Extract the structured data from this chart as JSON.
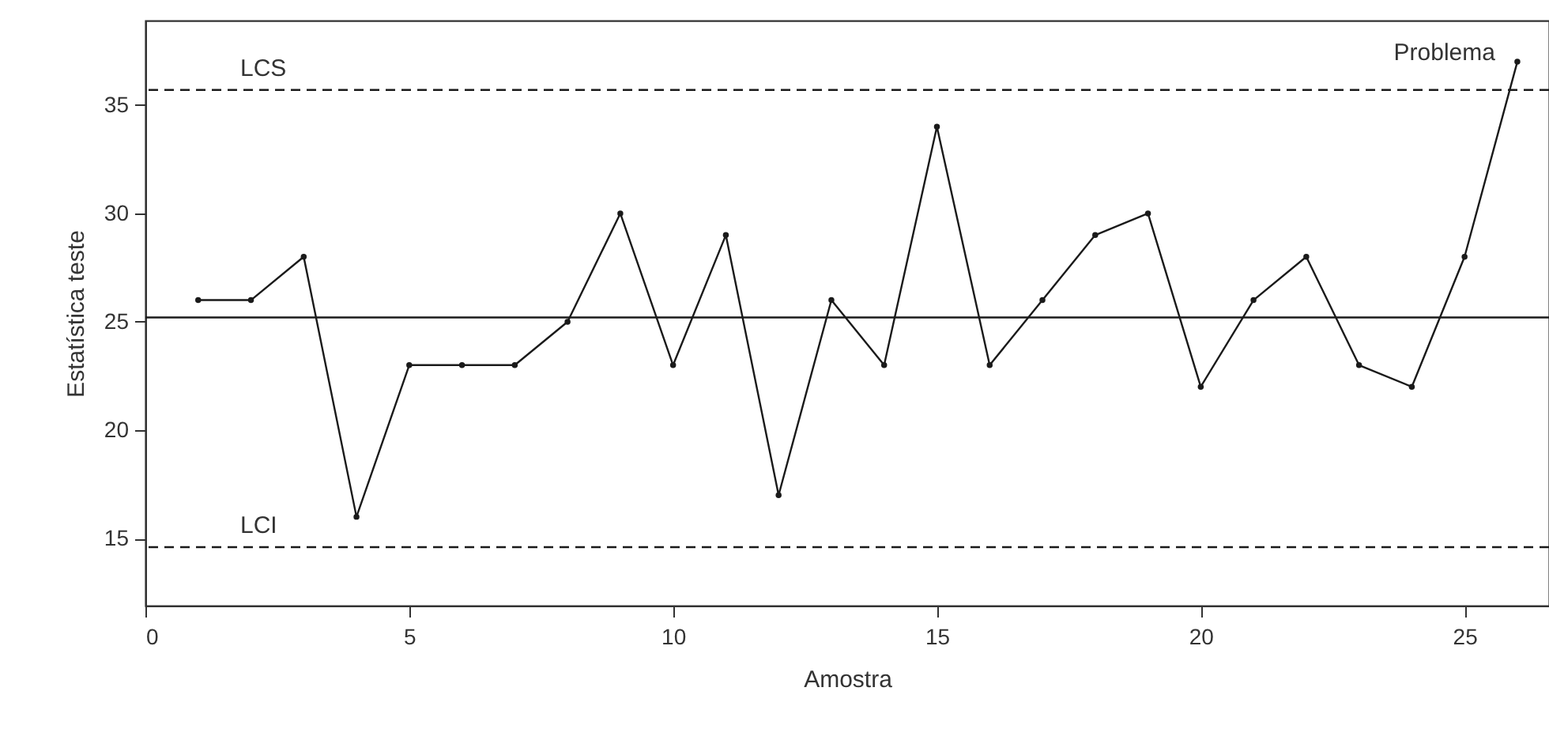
{
  "chart_data": {
    "type": "line",
    "xlabel": "Amostra",
    "ylabel": "Estatística teste",
    "x": [
      1,
      2,
      3,
      4,
      5,
      6,
      7,
      8,
      9,
      10,
      11,
      12,
      13,
      14,
      15,
      16,
      17,
      18,
      19,
      20,
      21,
      22,
      23,
      24,
      25,
      26
    ],
    "series": [
      {
        "color": "#1a1a1a",
        "values": [
          26,
          26,
          28,
          16,
          23,
          23,
          23,
          25,
          30,
          23,
          29,
          17,
          26,
          23,
          34,
          23,
          26,
          29,
          30,
          22,
          26,
          28,
          23,
          22,
          28,
          37
        ]
      }
    ],
    "xlim": [
      0,
      26.6
    ],
    "xticks": [
      0,
      5,
      10,
      15,
      20,
      25
    ],
    "ylim": [
      11.9,
      38.9
    ],
    "yticks": [
      15,
      20,
      25,
      30,
      35
    ],
    "ref_lines": [
      {
        "axis": "y",
        "value": 35.7,
        "label": "LCS",
        "line_style": "dashed"
      },
      {
        "axis": "y",
        "value": 25.2,
        "label": null,
        "line_style": "solid"
      },
      {
        "axis": "y",
        "value": 14.6,
        "label": "LCI",
        "line_style": "dashed"
      }
    ],
    "annotations": [
      {
        "text": "Problema",
        "x": 26,
        "y": 37
      }
    ],
    "marker": "circle",
    "line_style": "solid",
    "grid": false
  }
}
